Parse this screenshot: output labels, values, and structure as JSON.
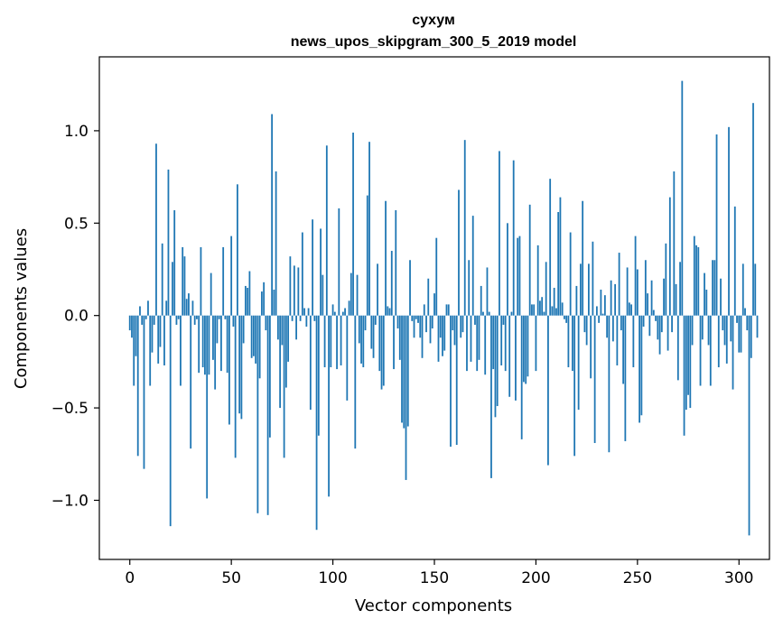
{
  "chart_data": {
    "type": "bar",
    "title": "сухум",
    "subtitle": "news_upos_skipgram_300_5_2019 model",
    "xlabel": "Vector components",
    "ylabel": "Components values",
    "xlim": [
      -15,
      315
    ],
    "ylim": [
      -1.32,
      1.4
    ],
    "x_ticks": [
      0,
      50,
      100,
      150,
      200,
      250,
      300
    ],
    "x_tick_labels": [
      "0",
      "50",
      "100",
      "150",
      "200",
      "250",
      "300"
    ],
    "y_ticks": [
      -1.0,
      -0.5,
      0.0,
      0.5,
      1.0
    ],
    "y_tick_labels": [
      "−1.0",
      "−0.5",
      "0.0",
      "0.5",
      "1.0"
    ],
    "grid": false,
    "bar_color": "#1f77b4",
    "values": [
      -0.08,
      -0.12,
      -0.38,
      -0.22,
      -0.76,
      0.05,
      -0.05,
      -0.83,
      -0.02,
      0.08,
      -0.38,
      -0.2,
      -0.05,
      0.93,
      -0.26,
      -0.17,
      0.39,
      -0.27,
      0.08,
      0.79,
      -1.14,
      0.29,
      0.57,
      -0.05,
      -0.02,
      -0.38,
      0.37,
      0.32,
      0.09,
      0.12,
      -0.72,
      0.08,
      -0.05,
      -0.02,
      -0.31,
      0.37,
      -0.28,
      -0.32,
      -0.99,
      -0.32,
      0.23,
      -0.24,
      -0.4,
      -0.15,
      -0.02,
      -0.3,
      0.37,
      -0.02,
      -0.31,
      -0.59,
      0.43,
      -0.06,
      -0.77,
      0.71,
      -0.53,
      -0.56,
      -0.15,
      0.16,
      0.15,
      0.24,
      -0.23,
      -0.22,
      -0.26,
      -1.07,
      -0.34,
      0.13,
      0.18,
      -0.08,
      -1.08,
      -0.66,
      1.09,
      0.14,
      0.78,
      -0.13,
      -0.5,
      -0.16,
      -0.77,
      -0.39,
      -0.25,
      0.32,
      -0.03,
      0.27,
      -0.13,
      0.26,
      -0.03,
      0.45,
      0.04,
      -0.06,
      0.04,
      -0.51,
      0.52,
      -0.03,
      -1.16,
      -0.65,
      0.47,
      0.22,
      -0.28,
      0.92,
      -0.98,
      -0.28,
      0.06,
      0.02,
      -0.29,
      0.58,
      -0.27,
      0.02,
      0.04,
      -0.46,
      0.08,
      0.23,
      0.99,
      -0.72,
      0.22,
      -0.15,
      -0.26,
      -0.28,
      -0.08,
      0.65,
      0.94,
      -0.18,
      -0.23,
      -0.05,
      0.28,
      -0.3,
      -0.4,
      -0.38,
      0.62,
      0.05,
      0.04,
      0.35,
      -0.29,
      0.57,
      -0.07,
      -0.24,
      -0.58,
      -0.61,
      -0.89,
      -0.6,
      0.3,
      -0.03,
      -0.12,
      -0.02,
      -0.04,
      -0.12,
      -0.23,
      0.06,
      -0.09,
      0.2,
      -0.15,
      -0.07,
      0.12,
      0.42,
      -0.25,
      -0.12,
      -0.22,
      -0.19,
      0.06,
      0.06,
      -0.71,
      -0.08,
      -0.16,
      -0.7,
      0.68,
      -0.12,
      -0.09,
      0.95,
      -0.3,
      0.3,
      -0.25,
      0.54,
      -0.05,
      -0.3,
      -0.24,
      0.16,
      0.02,
      -0.32,
      0.26,
      0.02,
      -0.88,
      -0.29,
      -0.55,
      -0.49,
      0.89,
      -0.27,
      -0.05,
      -0.3,
      0.5,
      -0.44,
      0.02,
      0.84,
      -0.46,
      0.42,
      0.43,
      -0.67,
      -0.36,
      -0.37,
      -0.33,
      0.6,
      0.06,
      0.06,
      -0.3,
      0.38,
      0.08,
      0.1,
      0.02,
      0.29,
      -0.81,
      0.74,
      0.05,
      0.15,
      0.04,
      0.56,
      0.64,
      0.07,
      -0.02,
      -0.04,
      -0.28,
      0.45,
      -0.3,
      -0.76,
      0.16,
      -0.51,
      0.28,
      0.62,
      -0.09,
      -0.16,
      0.28,
      -0.34,
      0.4,
      -0.69,
      0.05,
      -0.04,
      0.14,
      0.01,
      0.11,
      -0.12,
      -0.74,
      0.19,
      -0.14,
      0.17,
      -0.27,
      0.34,
      -0.08,
      -0.37,
      -0.68,
      0.26,
      0.07,
      0.06,
      -0.28,
      0.43,
      0.25,
      -0.58,
      -0.54,
      -0.06,
      0.3,
      0.12,
      -0.11,
      0.19,
      0.03,
      -0.03,
      -0.13,
      -0.21,
      -0.09,
      0.2,
      0.39,
      -0.19,
      0.64,
      -0.09,
      0.78,
      0.17,
      -0.35,
      0.29,
      1.27,
      -0.65,
      -0.51,
      -0.43,
      -0.5,
      -0.16,
      0.43,
      0.38,
      0.37,
      -0.38,
      -0.13,
      0.23,
      0.14,
      -0.16,
      -0.38,
      0.3,
      0.3,
      0.98,
      -0.28,
      0.2,
      -0.08,
      -0.16,
      -0.26,
      1.02,
      -0.14,
      -0.4,
      0.59,
      -0.04,
      -0.2,
      -0.2,
      0.28,
      0.04,
      -0.08,
      -1.19,
      -0.23,
      1.15,
      0.28,
      -0.12
    ]
  }
}
